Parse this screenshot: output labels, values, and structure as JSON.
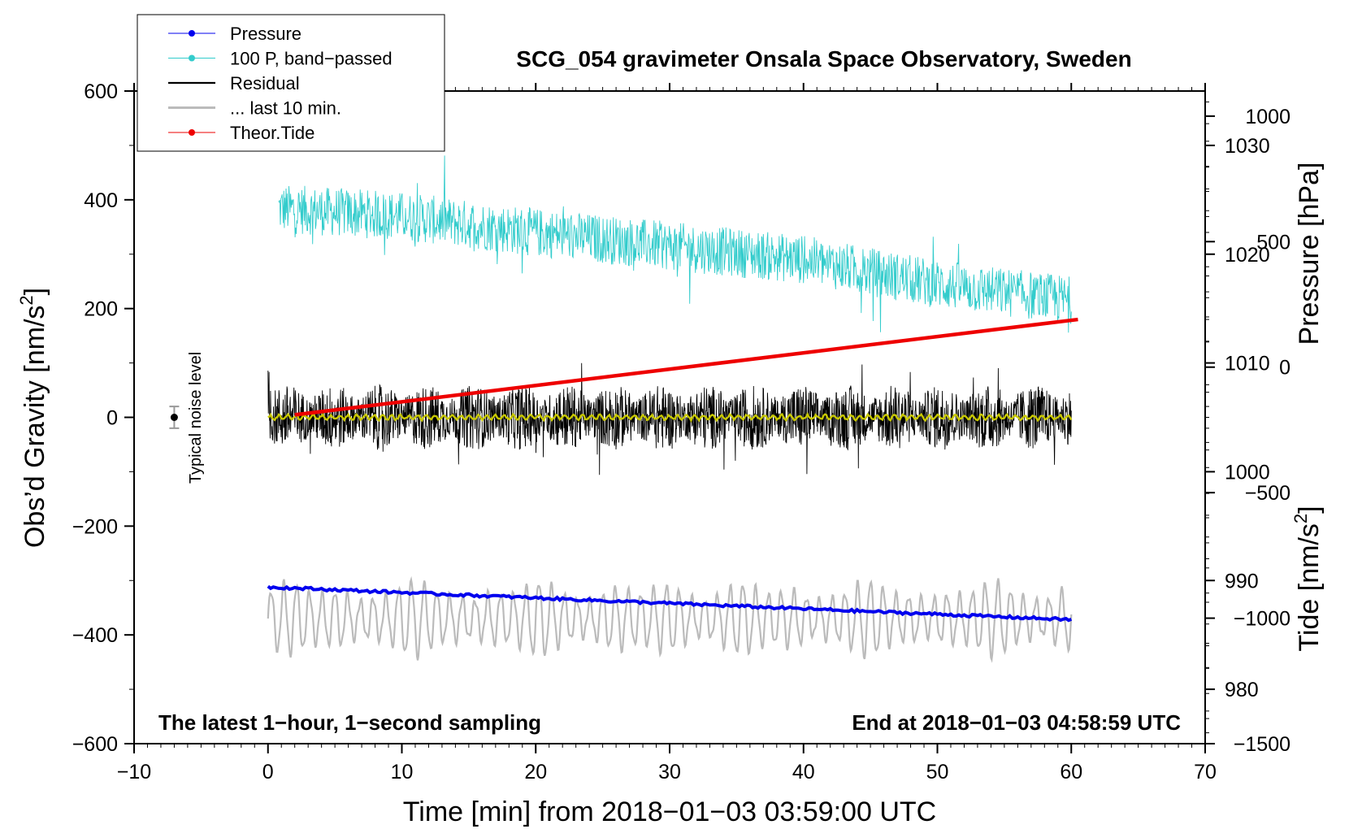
{
  "chart_data": {
    "type": "line",
    "title": "SCG_054 gravimeter Onsala Space Observatory, Sweden",
    "xlabel": "Time [min] from 2018−01−03 03:59:00 UTC",
    "ylabel_left": "Obs’d Gravity [nm/s",
    "ylabel_left_sup": "2",
    "ylabel_left_end": "]",
    "ylabel_right_top": "Pressure [hPa]",
    "ylabel_right_bottom": "Tide [nm/s",
    "ylabel_right_bottom_sup": "2",
    "ylabel_right_bottom_end": "]",
    "xlim": [
      -10,
      70
    ],
    "ylim": [
      -600,
      600
    ],
    "pressure_axis_lim": [
      975,
      1035
    ],
    "tide_axis_lim": [
      -1500,
      1100
    ],
    "x_ticks": [
      -10,
      0,
      10,
      20,
      30,
      40,
      50,
      60,
      70
    ],
    "x_tick_labels": [
      "−10",
      "0",
      "10",
      "20",
      "30",
      "40",
      "50",
      "60",
      "70"
    ],
    "y_ticks": [
      -600,
      -400,
      -200,
      0,
      200,
      400,
      600
    ],
    "y_tick_labels": [
      "−600",
      "−400",
      "−200",
      "0",
      "200",
      "400",
      "600"
    ],
    "pressure_ticks": [
      980,
      990,
      1000,
      1010,
      1020,
      1030
    ],
    "pressure_tick_labels": [
      "980",
      "990",
      "1000",
      "1010",
      "1020",
      "1030"
    ],
    "tide_ticks": [
      -1500,
      -1000,
      -500,
      0,
      500,
      1000
    ],
    "tide_tick_labels": [
      "−1500",
      "−1000",
      "−500",
      "0",
      "500",
      "1000"
    ],
    "legend": [
      {
        "label": "Pressure",
        "color": "#0000ee",
        "marker": true,
        "style": "thin"
      },
      {
        "label": "100 P, band−passed",
        "color": "#33cccc",
        "marker": true,
        "style": "thin"
      },
      {
        "label": "Residual",
        "color": "#000000",
        "marker": false,
        "style": "line"
      },
      {
        "label": "... last 10 min.",
        "color": "#bbbbbb",
        "marker": false,
        "style": "thick"
      },
      {
        "label": "Theor.Tide",
        "color": "#ee0000",
        "marker": true,
        "style": "thin"
      }
    ],
    "annotations": {
      "bottom_left": "The latest 1−hour, 1−second sampling",
      "bottom_right": "End at 2018−01−03 04:58:59 UTC",
      "noise_label": "Typical noise level"
    },
    "series": [
      {
        "name": "Pressure",
        "axis": "pressure",
        "color": "#0000ee",
        "x": [
          0,
          60
        ],
        "values": [
          989.4,
          986.4
        ]
      },
      {
        "name": "100 P, band-passed",
        "axis": "left",
        "color": "#33cccc",
        "x": [
          0,
          10,
          20,
          30,
          40,
          50,
          60
        ],
        "values": [
          385,
          370,
          340,
          315,
          290,
          245,
          215
        ],
        "noise_amplitude": 45
      },
      {
        "name": "Residual",
        "axis": "left",
        "color": "#000000",
        "x": [
          0,
          60
        ],
        "values": [
          0,
          0
        ],
        "noise_amplitude": 60
      },
      {
        "name": "Residual (smoothed)",
        "axis": "left",
        "color": "#c8c800",
        "x": [
          0,
          60
        ],
        "values": [
          0,
          0
        ],
        "noise_amplitude": 4
      },
      {
        "name": "... last 10 min.",
        "axis": "left",
        "color": "#bbbbbb",
        "x": [
          0,
          60
        ],
        "values": [
          -370,
          -370
        ],
        "amplitude": 70
      },
      {
        "name": "Theor.Tide",
        "axis": "tide",
        "color": "#ee0000",
        "x": [
          2,
          60.5
        ],
        "values": [
          -190,
          190
        ]
      }
    ],
    "noise_marker": {
      "x": -7,
      "y": 0,
      "error": 20
    }
  }
}
